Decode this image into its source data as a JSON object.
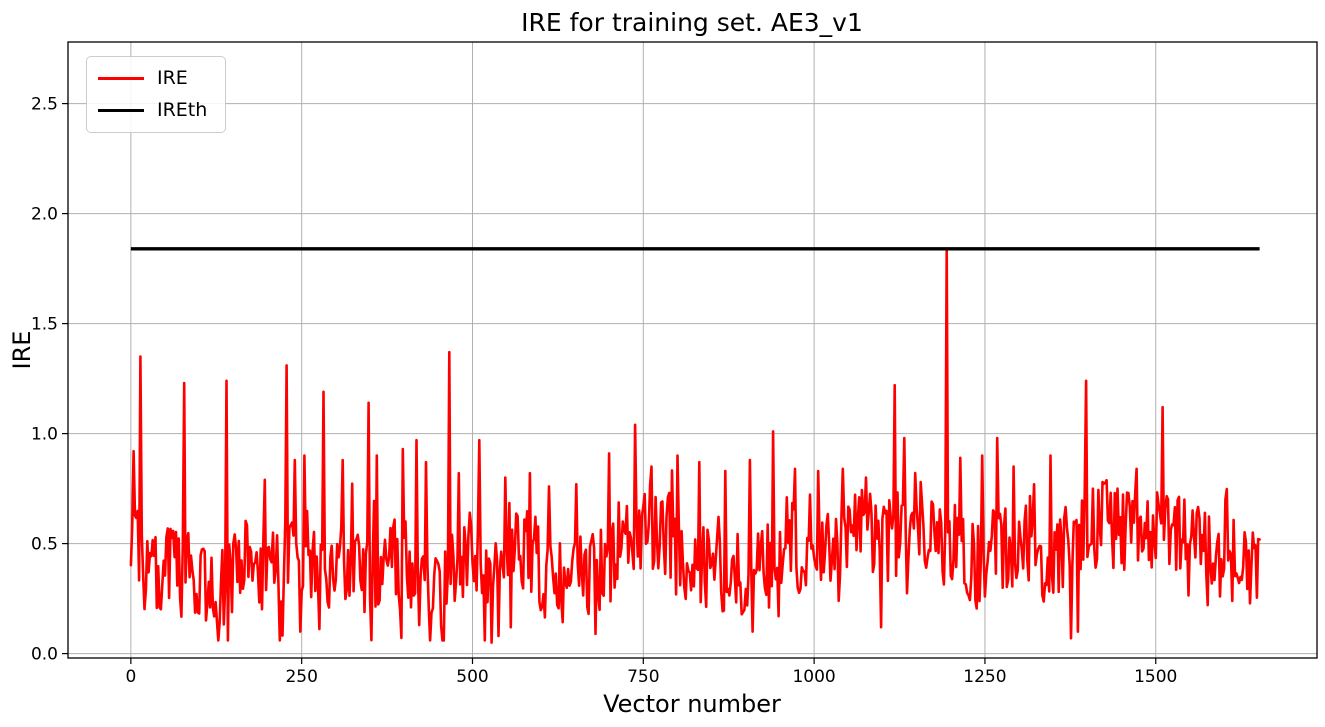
{
  "chart_data": {
    "type": "line",
    "title": "IRE for training set. AE3_v1",
    "xlabel": "Vector number",
    "ylabel": "IRE",
    "xlim": [
      -92,
      1736
    ],
    "ylim": [
      -0.02,
      2.78
    ],
    "x_ticks": [
      0,
      250,
      500,
      750,
      1000,
      1250,
      1500
    ],
    "x_tick_labels": [
      "0",
      "250",
      "500",
      "750",
      "1000",
      "1250",
      "1500"
    ],
    "y_ticks": [
      0.0,
      0.5,
      1.0,
      1.5,
      2.0,
      2.5
    ],
    "y_tick_labels": [
      "0.0",
      "0.5",
      "1.0",
      "1.5",
      "2.0",
      "2.5"
    ],
    "grid": true,
    "grid_color": "#b0b0b0",
    "background_color": "#ffffff",
    "legend": {
      "location": "upper left",
      "entries": [
        {
          "label": "IRE",
          "color": "#ff0000",
          "linewidth": 3
        },
        {
          "label": "IREth",
          "color": "#000000",
          "linewidth": 3.4
        }
      ]
    },
    "series": [
      {
        "name": "IRE",
        "type": "noisy_line",
        "color": "#ff0000",
        "linewidth": 2.6,
        "x_start": 0,
        "x_end": 1652,
        "x_step": 2,
        "seed": 20240917,
        "noise_baseline": {
          "mean": 0.42,
          "min": 0.06,
          "max": 0.93,
          "jitter": 0.2,
          "walk": 0.06,
          "env_min": 0.3,
          "env_max": 0.58
        },
        "notable_peaks": [
          [
            4,
            0.92
          ],
          [
            14,
            1.35
          ],
          [
            78,
            1.23
          ],
          [
            140,
            1.24
          ],
          [
            196,
            0.79
          ],
          [
            228,
            1.31
          ],
          [
            240,
            0.88
          ],
          [
            254,
            0.9
          ],
          [
            282,
            1.19
          ],
          [
            310,
            0.88
          ],
          [
            348,
            1.14
          ],
          [
            360,
            0.9
          ],
          [
            398,
            0.93
          ],
          [
            418,
            0.97
          ],
          [
            432,
            0.87
          ],
          [
            466,
            1.37
          ],
          [
            480,
            0.82
          ],
          [
            510,
            0.97
          ],
          [
            548,
            0.8
          ],
          [
            584,
            0.82
          ],
          [
            612,
            0.76
          ],
          [
            652,
            0.77
          ],
          [
            700,
            0.91
          ],
          [
            738,
            1.04
          ],
          [
            762,
            0.85
          ],
          [
            800,
            0.9
          ],
          [
            832,
            0.87
          ],
          [
            870,
            0.83
          ],
          [
            906,
            0.88
          ],
          [
            940,
            1.01
          ],
          [
            972,
            0.84
          ],
          [
            1006,
            0.83
          ],
          [
            1042,
            0.84
          ],
          [
            1076,
            0.8
          ],
          [
            1118,
            1.22
          ],
          [
            1132,
            0.98
          ],
          [
            1156,
            0.78
          ],
          [
            1194,
            1.84
          ],
          [
            1214,
            0.89
          ],
          [
            1246,
            0.9
          ],
          [
            1268,
            0.98
          ],
          [
            1292,
            0.85
          ],
          [
            1322,
            0.77
          ],
          [
            1346,
            0.9
          ],
          [
            1398,
            1.24
          ],
          [
            1422,
            0.78
          ],
          [
            1444,
            0.75
          ],
          [
            1472,
            0.84
          ],
          [
            1510,
            1.12
          ],
          [
            1542,
            0.7
          ],
          [
            1572,
            0.64
          ],
          [
            1602,
            0.7
          ],
          [
            1642,
            0.55
          ]
        ],
        "notable_dips": [
          [
            248,
            0.1
          ],
          [
            518,
            0.06
          ],
          [
            528,
            0.05
          ],
          [
            538,
            0.08
          ],
          [
            556,
            0.12
          ],
          [
            680,
            0.09
          ],
          [
            1098,
            0.12
          ],
          [
            1376,
            0.07
          ],
          [
            1386,
            0.1
          ]
        ]
      },
      {
        "name": "IREth",
        "type": "hline",
        "color": "#000000",
        "linewidth": 3.4,
        "y": 1.84,
        "x_start": 0,
        "x_end": 1652
      }
    ]
  }
}
